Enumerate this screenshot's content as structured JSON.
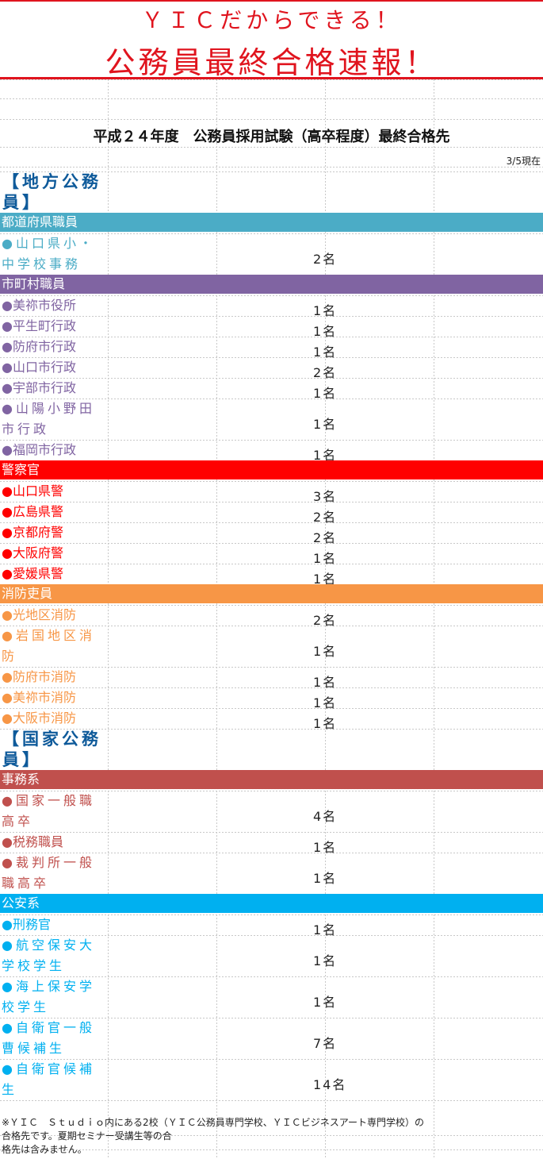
{
  "banner": {
    "line1": "ＹＩＣだからできる！",
    "line2": "公務員最終合格速報！",
    "accent": "#e0141e"
  },
  "title": "平成２４年度　公務員採用試験（高卒程度）最終合格先",
  "as_of": "3/5現在",
  "sections": [
    {
      "heading_lines": [
        "【地方公務",
        "員】"
      ],
      "categories": [
        {
          "label": "都道府県職員",
          "color": "#4bacc6",
          "items": [
            {
              "name_lines": [
                "●山口県小・",
                "中学校事務"
              ],
              "count": "2名"
            }
          ]
        },
        {
          "label": "市町村職員",
          "color": "#8064a2",
          "items": [
            {
              "name_lines": [
                "●美祢市役所"
              ],
              "count": "1名"
            },
            {
              "name_lines": [
                "●平生町行政"
              ],
              "count": "1名"
            },
            {
              "name_lines": [
                "●防府市行政"
              ],
              "count": "1名"
            },
            {
              "name_lines": [
                "●山口市行政"
              ],
              "count": "2名"
            },
            {
              "name_lines": [
                "●宇部市行政"
              ],
              "count": "1名"
            },
            {
              "name_lines": [
                "●山陽小野田",
                "市行政"
              ],
              "count": "1名"
            },
            {
              "name_lines": [
                "●福岡市行政"
              ],
              "count": "1名"
            }
          ]
        },
        {
          "label": "警察官",
          "color": "#ff0000",
          "items": [
            {
              "name_lines": [
                "●山口県警"
              ],
              "count": "3名"
            },
            {
              "name_lines": [
                "●広島県警"
              ],
              "count": "2名"
            },
            {
              "name_lines": [
                "●京都府警"
              ],
              "count": "2名"
            },
            {
              "name_lines": [
                "●大阪府警"
              ],
              "count": "1名"
            },
            {
              "name_lines": [
                "●愛媛県警"
              ],
              "count": "1名"
            }
          ]
        },
        {
          "label": "消防吏員",
          "color": "#f79646",
          "items": [
            {
              "name_lines": [
                "●光地区消防"
              ],
              "count": "2名"
            },
            {
              "name_lines": [
                "●岩国地区消",
                "防"
              ],
              "count": "1名"
            },
            {
              "name_lines": [
                "●防府市消防"
              ],
              "count": "1名"
            },
            {
              "name_lines": [
                "●美祢市消防"
              ],
              "count": "1名"
            },
            {
              "name_lines": [
                "●大阪市消防"
              ],
              "count": "1名"
            }
          ]
        }
      ]
    },
    {
      "heading_lines": [
        "【国家公務",
        "員】"
      ],
      "categories": [
        {
          "label": "事務系",
          "color": "#c0504d",
          "items": [
            {
              "name_lines": [
                "●国家一般職",
                "高卒"
              ],
              "count": "4名"
            },
            {
              "name_lines": [
                "●税務職員"
              ],
              "count": "1名"
            },
            {
              "name_lines": [
                "●裁判所一般",
                "職高卒"
              ],
              "count": "1名"
            }
          ]
        },
        {
          "label": "公安系",
          "color": "#00b0f0",
          "items": [
            {
              "name_lines": [
                "●刑務官"
              ],
              "count": "1名"
            },
            {
              "name_lines": [
                "●航空保安大",
                "学校学生"
              ],
              "count": "1名"
            },
            {
              "name_lines": [
                "●海上保安学",
                "校学生"
              ],
              "count": "1名"
            },
            {
              "name_lines": [
                "●自衛官一般",
                "曹候補生"
              ],
              "count": "7名"
            },
            {
              "name_lines": [
                "●自衛官候補",
                "生"
              ],
              "count": "14名"
            }
          ]
        }
      ]
    }
  ],
  "note_lines": [
    "※ＹＩＣ　Ｓｔｕｄｉｏ内にある2校（ＹＩＣ公務員専門学校、ＹＩＣビジネスアート専門学校）の",
    "合格先です。夏期セミナー受講生等の合",
    "格先は含みません。"
  ]
}
